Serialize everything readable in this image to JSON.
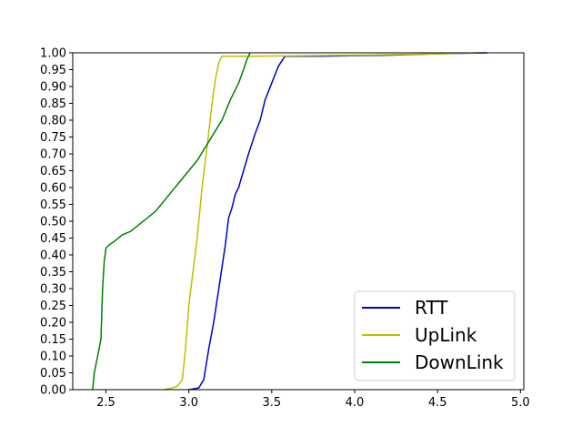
{
  "chart_data": {
    "type": "line",
    "title": "",
    "xlabel": "",
    "ylabel": "",
    "xlim": [
      2.3,
      5.02
    ],
    "ylim": [
      0.0,
      1.0
    ],
    "x_ticks": [
      {
        "value": 2.5,
        "label": "2.5"
      },
      {
        "value": 3.0,
        "label": "3.0"
      },
      {
        "value": 3.5,
        "label": "3.5"
      },
      {
        "value": 4.0,
        "label": "4.0"
      },
      {
        "value": 4.5,
        "label": "4.5"
      },
      {
        "value": 5.0,
        "label": "5.0"
      }
    ],
    "y_ticks": [
      {
        "value": 0.0,
        "label": "0.00"
      },
      {
        "value": 0.05,
        "label": "0.05"
      },
      {
        "value": 0.1,
        "label": "0.10"
      },
      {
        "value": 0.15,
        "label": "0.15"
      },
      {
        "value": 0.2,
        "label": "0.20"
      },
      {
        "value": 0.25,
        "label": "0.25"
      },
      {
        "value": 0.3,
        "label": "0.30"
      },
      {
        "value": 0.35,
        "label": "0.35"
      },
      {
        "value": 0.4,
        "label": "0.40"
      },
      {
        "value": 0.45,
        "label": "0.45"
      },
      {
        "value": 0.5,
        "label": "0.50"
      },
      {
        "value": 0.55,
        "label": "0.55"
      },
      {
        "value": 0.6,
        "label": "0.60"
      },
      {
        "value": 0.65,
        "label": "0.65"
      },
      {
        "value": 0.7,
        "label": "0.70"
      },
      {
        "value": 0.75,
        "label": "0.75"
      },
      {
        "value": 0.8,
        "label": "0.80"
      },
      {
        "value": 0.85,
        "label": "0.85"
      },
      {
        "value": 0.9,
        "label": "0.90"
      },
      {
        "value": 0.95,
        "label": "0.95"
      },
      {
        "value": 1.0,
        "label": "1.00"
      }
    ],
    "grid": false,
    "legend_position": "bottom-right",
    "series": [
      {
        "name": "RTT",
        "color": "#0000cc",
        "x": [
          3.0,
          3.06,
          3.09,
          3.1,
          3.12,
          3.15,
          3.19,
          3.22,
          3.24,
          3.26,
          3.28,
          3.3,
          3.33,
          3.36,
          3.4,
          3.43,
          3.46,
          3.5,
          3.54,
          3.58,
          3.8,
          4.2,
          4.5,
          4.8
        ],
        "y": [
          0.0,
          0.005,
          0.03,
          0.06,
          0.12,
          0.2,
          0.33,
          0.43,
          0.51,
          0.54,
          0.58,
          0.6,
          0.65,
          0.7,
          0.76,
          0.8,
          0.86,
          0.91,
          0.96,
          0.99,
          0.99,
          0.993,
          0.997,
          1.0
        ]
      },
      {
        "name": "UpLink",
        "color": "#bfbf00",
        "x": [
          2.85,
          2.9,
          2.93,
          2.96,
          2.98,
          3.0,
          3.02,
          3.05,
          3.08,
          3.11,
          3.14,
          3.16,
          3.18,
          3.2,
          3.4,
          4.0,
          4.5,
          4.75
        ],
        "y": [
          0.0,
          0.005,
          0.01,
          0.03,
          0.12,
          0.25,
          0.33,
          0.45,
          0.6,
          0.72,
          0.85,
          0.92,
          0.97,
          0.99,
          0.99,
          0.993,
          0.997,
          1.0
        ]
      },
      {
        "name": "DownLink",
        "color": "#008000",
        "x": [
          2.42,
          2.43,
          2.45,
          2.47,
          2.48,
          2.49,
          2.5,
          2.52,
          2.55,
          2.6,
          2.65,
          2.7,
          2.75,
          2.8,
          2.85,
          2.9,
          2.95,
          3.0,
          3.05,
          3.1,
          3.15,
          3.2,
          3.25,
          3.3,
          3.33,
          3.35,
          3.37
        ],
        "y": [
          0.0,
          0.05,
          0.1,
          0.15,
          0.3,
          0.38,
          0.42,
          0.43,
          0.44,
          0.46,
          0.47,
          0.49,
          0.51,
          0.53,
          0.56,
          0.59,
          0.62,
          0.65,
          0.68,
          0.72,
          0.76,
          0.8,
          0.86,
          0.91,
          0.95,
          0.98,
          1.0
        ]
      }
    ]
  }
}
